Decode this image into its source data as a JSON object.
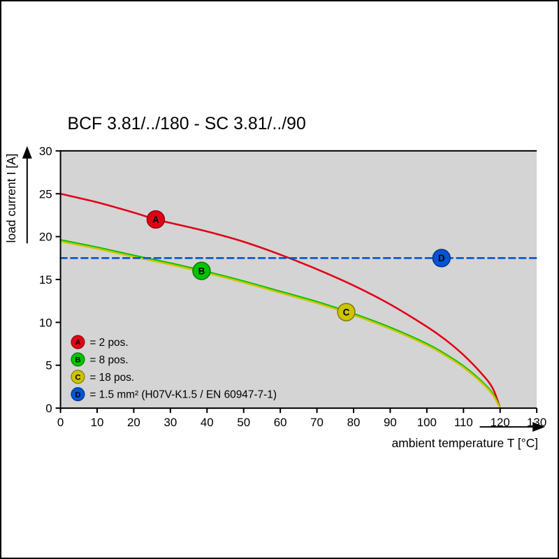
{
  "chart_data": {
    "type": "line",
    "title": "BCF 3.81/../180 - SC 3.81/../90",
    "xlabel": "ambient temperature T [°C]",
    "ylabel": "load current I [A]",
    "xlim": [
      0,
      130
    ],
    "ylim": [
      0,
      30
    ],
    "xticks": [
      0,
      10,
      20,
      30,
      40,
      50,
      60,
      70,
      80,
      90,
      100,
      110,
      120,
      130
    ],
    "yticks": [
      0,
      5,
      10,
      15,
      20,
      25,
      30
    ],
    "plot_background": "#d4d4d4",
    "grid": false,
    "legend_position": "bottom-left-inside",
    "series": [
      {
        "name": "A",
        "color": "#e30016",
        "style": "solid",
        "points": [
          [
            0,
            25
          ],
          [
            10,
            24
          ],
          [
            20,
            22.8
          ],
          [
            26,
            22
          ],
          [
            30,
            21.6
          ],
          [
            40,
            20.6
          ],
          [
            50,
            19.4
          ],
          [
            60,
            17.9
          ],
          [
            70,
            16.2
          ],
          [
            80,
            14.3
          ],
          [
            90,
            12.1
          ],
          [
            100,
            9.5
          ],
          [
            105,
            8
          ],
          [
            110,
            6.2
          ],
          [
            115,
            4
          ],
          [
            118,
            2.3
          ],
          [
            120,
            0
          ]
        ]
      },
      {
        "name": "B",
        "color": "#00c300",
        "style": "solid",
        "points": [
          [
            0,
            19.6
          ],
          [
            10,
            18.75
          ],
          [
            20,
            17.8
          ],
          [
            30,
            16.9
          ],
          [
            40,
            15.9
          ],
          [
            50,
            14.8
          ],
          [
            60,
            13.6
          ],
          [
            70,
            12.4
          ],
          [
            80,
            11
          ],
          [
            90,
            9.4
          ],
          [
            100,
            7.5
          ],
          [
            105,
            6.3
          ],
          [
            110,
            4.9
          ],
          [
            115,
            3.1
          ],
          [
            118,
            1.7
          ],
          [
            120,
            0
          ]
        ]
      },
      {
        "name": "C",
        "color": "#cdc400",
        "style": "solid",
        "points": [
          [
            0,
            19.45
          ],
          [
            10,
            18.6
          ],
          [
            20,
            17.65
          ],
          [
            30,
            16.75
          ],
          [
            40,
            15.75
          ],
          [
            50,
            14.65
          ],
          [
            60,
            13.45
          ],
          [
            70,
            12.25
          ],
          [
            80,
            10.85
          ],
          [
            90,
            9.25
          ],
          [
            100,
            7.35
          ],
          [
            105,
            6.15
          ],
          [
            110,
            4.75
          ],
          [
            115,
            2.95
          ],
          [
            118,
            1.55
          ],
          [
            120,
            0
          ]
        ]
      },
      {
        "name": "D",
        "color": "#0055d4",
        "style": "dashed",
        "points": [
          [
            0,
            17.5
          ],
          [
            130,
            17.5
          ]
        ]
      }
    ],
    "markers": [
      {
        "series": "A",
        "x": 26,
        "y": 22
      },
      {
        "series": "B",
        "x": 38.5,
        "y": 16
      },
      {
        "series": "C",
        "x": 78,
        "y": 11.2
      },
      {
        "series": "D",
        "x": 104,
        "y": 17.5
      }
    ],
    "legend": [
      {
        "key": "A",
        "text": "= 2 pos."
      },
      {
        "key": "B",
        "text": "= 8 pos."
      },
      {
        "key": "C",
        "text": "= 18 pos."
      },
      {
        "key": "D",
        "text": "= 1.5 mm² (H07V-K1.5 / EN 60947-7-1)"
      }
    ]
  }
}
